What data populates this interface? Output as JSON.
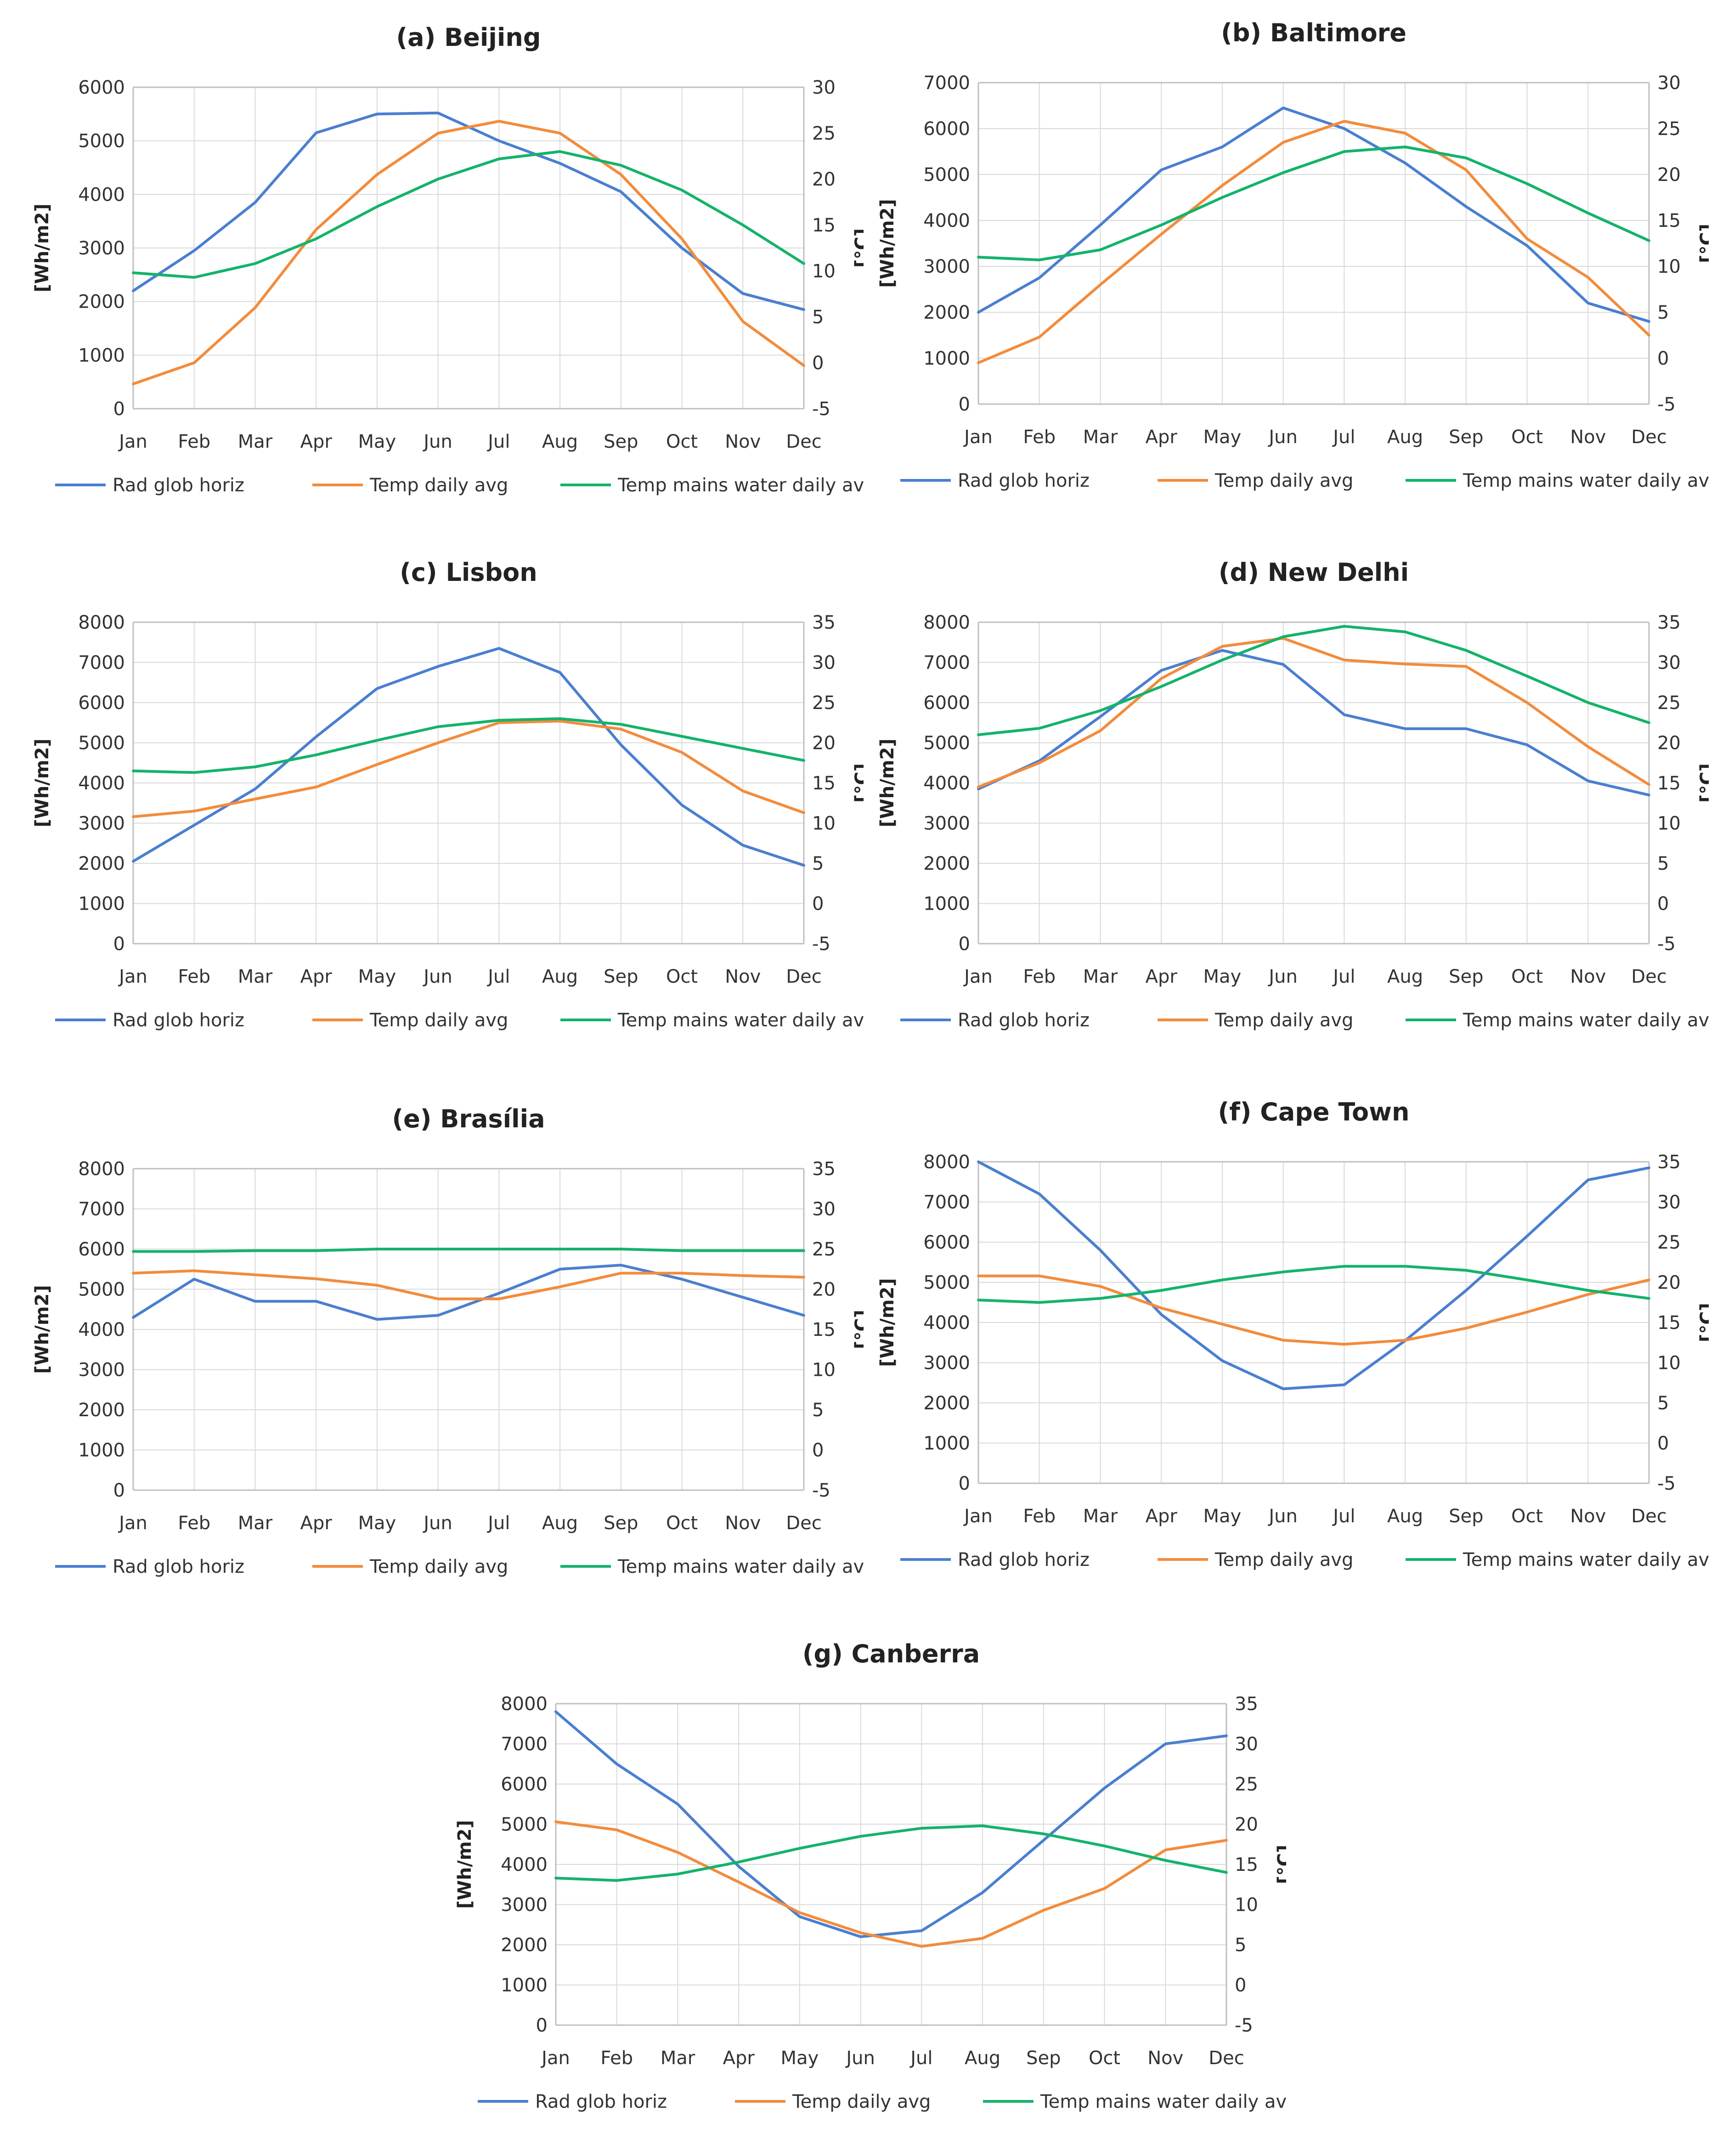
{
  "chart_data": [
    {
      "type": "line",
      "title": "(a) Beijing",
      "ylabel": "[Wh/m2]",
      "y2label": "[°C]",
      "ylim": [
        0,
        6000
      ],
      "ystep": 1000,
      "y2lim": [
        -5,
        30
      ],
      "y2step": 5,
      "categories": [
        "Jan",
        "Feb",
        "Mar",
        "Apr",
        "May",
        "Jun",
        "Jul",
        "Aug",
        "Sep",
        "Oct",
        "Nov",
        "Dec"
      ],
      "series": [
        {
          "name": "Rad glob horiz",
          "axis": "left",
          "color": "#4a7fd0",
          "values": [
            2200,
            2950,
            3850,
            5150,
            5500,
            5520,
            5000,
            4580,
            4050,
            3000,
            2150,
            1850
          ]
        },
        {
          "name": "Temp daily avg",
          "axis": "right",
          "color": "#f28c3c",
          "values": [
            -2.3,
            0.0,
            6.0,
            14.5,
            20.5,
            25.0,
            26.3,
            25.0,
            20.5,
            13.5,
            4.5,
            -0.3
          ]
        },
        {
          "name": "Temp mains water daily avg",
          "axis": "right",
          "color": "#14b36a",
          "values": [
            9.8,
            9.3,
            10.8,
            13.5,
            17.0,
            20.0,
            22.2,
            23.0,
            21.5,
            18.8,
            15.0,
            10.8
          ]
        }
      ]
    },
    {
      "type": "line",
      "title": "(b) Baltimore",
      "ylabel": "[Wh/m2]",
      "y2label": "[°C]",
      "ylim": [
        0,
        7000
      ],
      "ystep": 1000,
      "y2lim": [
        -5,
        30
      ],
      "y2step": 5,
      "categories": [
        "Jan",
        "Feb",
        "Mar",
        "Apr",
        "May",
        "Jun",
        "Jul",
        "Aug",
        "Sep",
        "Oct",
        "Nov",
        "Dec"
      ],
      "series": [
        {
          "name": "Rad glob horiz",
          "axis": "left",
          "color": "#4a7fd0",
          "values": [
            2000,
            2750,
            3900,
            5100,
            5600,
            6450,
            6000,
            5250,
            4300,
            3450,
            2200,
            1800
          ]
        },
        {
          "name": "Temp daily avg",
          "axis": "right",
          "color": "#f28c3c",
          "values": [
            -0.5,
            2.3,
            8.0,
            13.5,
            18.8,
            23.5,
            25.8,
            24.5,
            20.5,
            13.0,
            8.8,
            2.5
          ]
        },
        {
          "name": "Temp mains water daily avg",
          "axis": "right",
          "color": "#14b36a",
          "values": [
            11.0,
            10.7,
            11.8,
            14.5,
            17.5,
            20.2,
            22.5,
            23.0,
            21.8,
            19.0,
            15.8,
            12.8
          ]
        }
      ]
    },
    {
      "type": "line",
      "title": "(c) Lisbon",
      "ylabel": "[Wh/m2]",
      "y2label": "[°C]",
      "ylim": [
        0,
        8000
      ],
      "ystep": 1000,
      "y2lim": [
        -5,
        35
      ],
      "y2step": 5,
      "categories": [
        "Jan",
        "Feb",
        "Mar",
        "Apr",
        "May",
        "Jun",
        "Jul",
        "Aug",
        "Sep",
        "Oct",
        "Nov",
        "Dec"
      ],
      "series": [
        {
          "name": "Rad glob horiz",
          "axis": "left",
          "color": "#4a7fd0",
          "values": [
            2050,
            2950,
            3850,
            5150,
            6350,
            6900,
            7350,
            6750,
            4950,
            3450,
            2450,
            1950
          ]
        },
        {
          "name": "Temp daily avg",
          "axis": "right",
          "color": "#f28c3c",
          "values": [
            10.8,
            11.5,
            13.0,
            14.5,
            17.3,
            20.0,
            22.5,
            22.7,
            21.7,
            18.8,
            14.0,
            11.3
          ]
        },
        {
          "name": "Temp mains water daily avg",
          "axis": "right",
          "color": "#14b36a",
          "values": [
            16.5,
            16.3,
            17.0,
            18.5,
            20.3,
            22.0,
            22.8,
            23.0,
            22.3,
            20.8,
            19.3,
            17.8
          ]
        }
      ]
    },
    {
      "type": "line",
      "title": "(d) New Delhi",
      "ylabel": "[Wh/m2]",
      "y2label": "[°C]",
      "ylim": [
        0,
        8000
      ],
      "ystep": 1000,
      "y2lim": [
        -5,
        35
      ],
      "y2step": 5,
      "categories": [
        "Jan",
        "Feb",
        "Mar",
        "Apr",
        "May",
        "Jun",
        "Jul",
        "Aug",
        "Sep",
        "Oct",
        "Nov",
        "Dec"
      ],
      "series": [
        {
          "name": "Rad glob horiz",
          "axis": "left",
          "color": "#4a7fd0",
          "values": [
            3850,
            4550,
            5650,
            6800,
            7300,
            6950,
            5700,
            5350,
            5350,
            4950,
            4050,
            3700
          ]
        },
        {
          "name": "Temp daily avg",
          "axis": "right",
          "color": "#f28c3c",
          "values": [
            14.5,
            17.5,
            21.5,
            28.0,
            32.0,
            33.0,
            30.3,
            29.8,
            29.5,
            25.0,
            19.5,
            14.8
          ]
        },
        {
          "name": "Temp mains water daily avg",
          "axis": "right",
          "color": "#14b36a",
          "values": [
            21.0,
            21.8,
            24.0,
            27.0,
            30.3,
            33.2,
            34.5,
            33.8,
            31.5,
            28.3,
            25.0,
            22.5
          ]
        }
      ]
    },
    {
      "type": "line",
      "title": "(e) Brasília",
      "ylabel": "[Wh/m2]",
      "y2label": "[°C]",
      "ylim": [
        0,
        8000
      ],
      "ystep": 1000,
      "y2lim": [
        -5,
        35
      ],
      "y2step": 5,
      "categories": [
        "Jan",
        "Feb",
        "Mar",
        "Apr",
        "May",
        "Jun",
        "Jul",
        "Aug",
        "Sep",
        "Oct",
        "Nov",
        "Dec"
      ],
      "series": [
        {
          "name": "Rad glob horiz",
          "axis": "left",
          "color": "#4a7fd0",
          "values": [
            4300,
            5250,
            4700,
            4700,
            4250,
            4350,
            4900,
            5500,
            5600,
            5250,
            4800,
            4350
          ]
        },
        {
          "name": "Temp daily avg",
          "axis": "right",
          "color": "#f28c3c",
          "values": [
            22.0,
            22.3,
            21.8,
            21.3,
            20.5,
            18.8,
            18.8,
            20.3,
            22.0,
            22.0,
            21.7,
            21.5
          ]
        },
        {
          "name": "Temp mains water daily avg",
          "axis": "right",
          "color": "#14b36a",
          "values": [
            24.7,
            24.7,
            24.8,
            24.8,
            25.0,
            25.0,
            25.0,
            25.0,
            25.0,
            24.8,
            24.8,
            24.8
          ]
        }
      ]
    },
    {
      "type": "line",
      "title": "(f) Cape Town",
      "ylabel": "[Wh/m2]",
      "y2label": "[°C]",
      "ylim": [
        0,
        8000
      ],
      "ystep": 1000,
      "y2lim": [
        -5,
        35
      ],
      "y2step": 5,
      "categories": [
        "Jan",
        "Feb",
        "Mar",
        "Apr",
        "May",
        "Jun",
        "Jul",
        "Aug",
        "Sep",
        "Oct",
        "Nov",
        "Dec"
      ],
      "series": [
        {
          "name": "Rad glob horiz",
          "axis": "left",
          "color": "#4a7fd0",
          "values": [
            8000,
            7200,
            5800,
            4200,
            3050,
            2350,
            2450,
            3550,
            4800,
            6150,
            7550,
            7850
          ]
        },
        {
          "name": "Temp daily avg",
          "axis": "right",
          "color": "#f28c3c",
          "values": [
            20.8,
            20.8,
            19.5,
            16.8,
            14.8,
            12.8,
            12.3,
            12.8,
            14.3,
            16.3,
            18.5,
            20.3
          ]
        },
        {
          "name": "Temp mains water daily avg",
          "axis": "right",
          "color": "#14b36a",
          "values": [
            17.8,
            17.5,
            18.0,
            19.0,
            20.3,
            21.3,
            22.0,
            22.0,
            21.5,
            20.3,
            19.0,
            18.0
          ]
        }
      ]
    },
    {
      "type": "line",
      "title": "(g) Canberra",
      "ylabel": "[Wh/m2]",
      "y2label": "[°C]",
      "ylim": [
        0,
        8000
      ],
      "ystep": 1000,
      "y2lim": [
        -5,
        35
      ],
      "y2step": 5,
      "categories": [
        "Jan",
        "Feb",
        "Mar",
        "Apr",
        "May",
        "Jun",
        "Jul",
        "Aug",
        "Sep",
        "Oct",
        "Nov",
        "Dec"
      ],
      "series": [
        {
          "name": "Rad glob horiz",
          "axis": "left",
          "color": "#4a7fd0",
          "values": [
            7800,
            6500,
            5500,
            3950,
            2700,
            2200,
            2350,
            3300,
            4600,
            5900,
            7000,
            7200
          ]
        },
        {
          "name": "Temp daily avg",
          "axis": "right",
          "color": "#f28c3c",
          "values": [
            20.3,
            19.3,
            16.5,
            12.8,
            9.0,
            6.5,
            4.8,
            5.8,
            9.3,
            12.0,
            16.8,
            18.0
          ]
        },
        {
          "name": "Temp mains water daily avg",
          "axis": "right",
          "color": "#14b36a",
          "values": [
            13.3,
            13.0,
            13.8,
            15.3,
            17.0,
            18.5,
            19.5,
            19.8,
            18.8,
            17.3,
            15.5,
            14.0
          ]
        }
      ]
    }
  ]
}
